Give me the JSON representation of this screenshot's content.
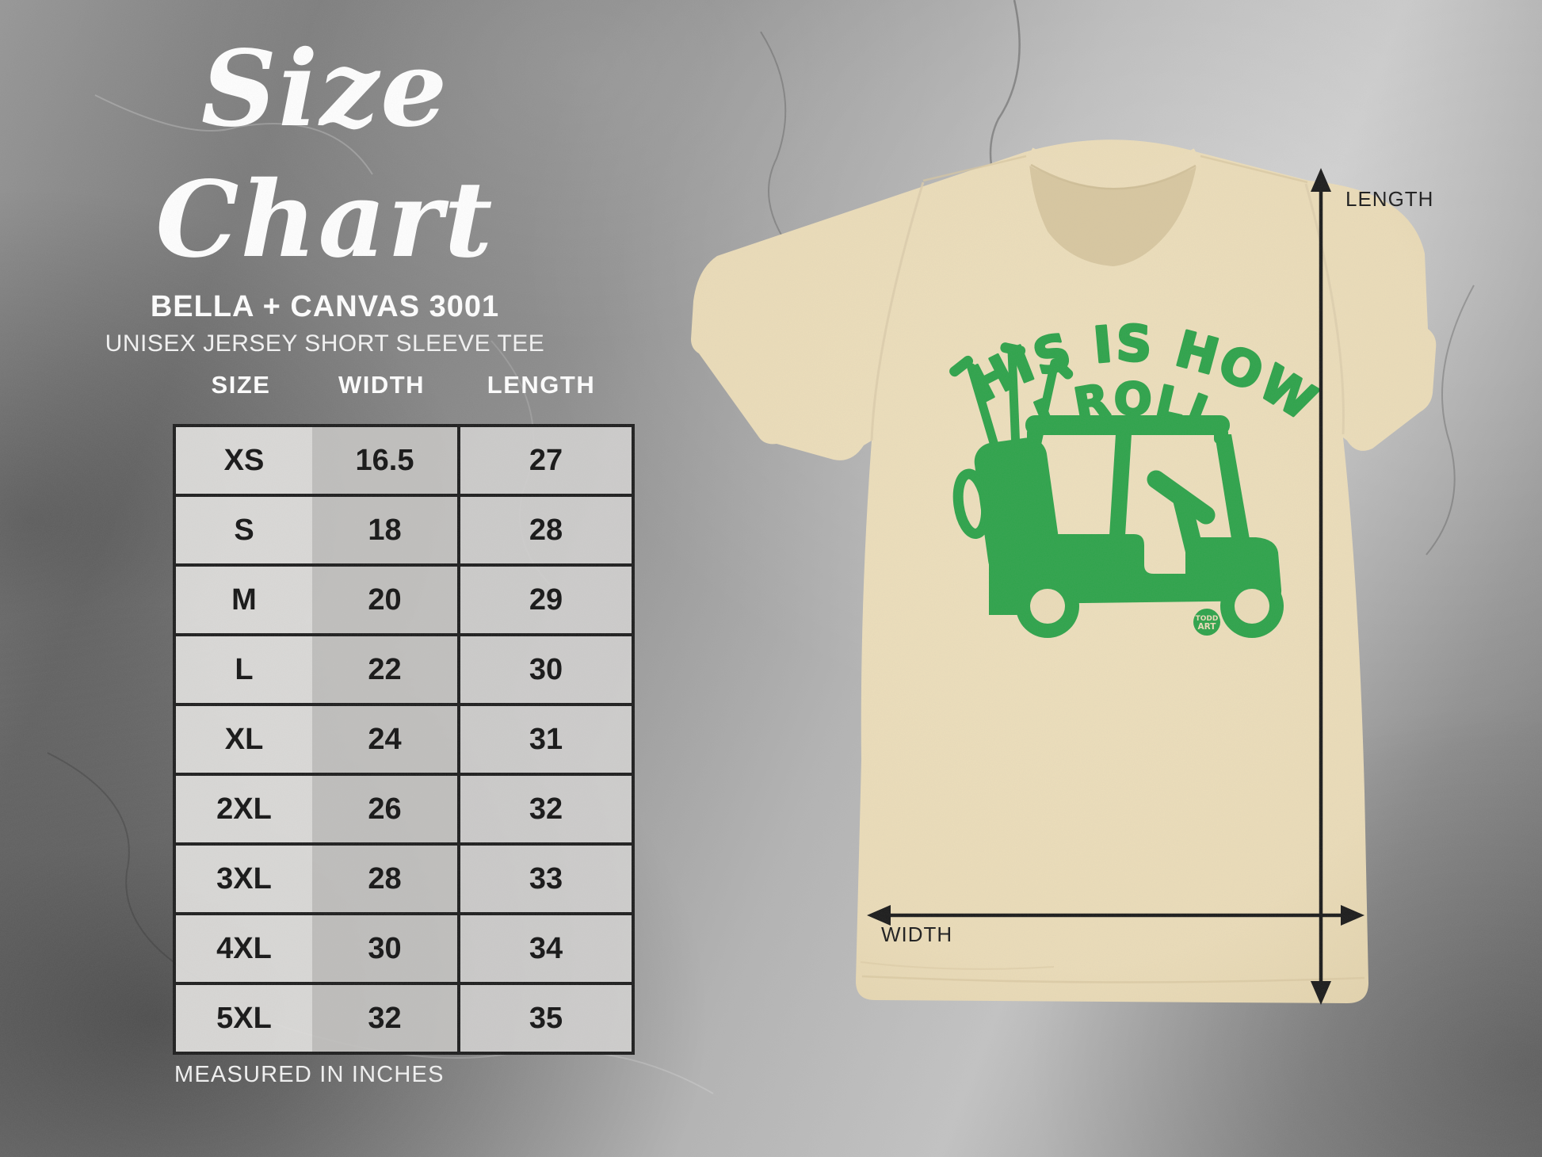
{
  "title": "Size Chart",
  "brand": "BELLA + CANVAS 3001",
  "product": "UNISEX JERSEY SHORT SLEEVE TEE",
  "table": {
    "columns": [
      "SIZE",
      "WIDTH",
      "LENGTH"
    ],
    "rows": [
      [
        "XS",
        "16.5",
        "27"
      ],
      [
        "S",
        "18",
        "28"
      ],
      [
        "M",
        "20",
        "29"
      ],
      [
        "L",
        "22",
        "30"
      ],
      [
        "XL",
        "24",
        "31"
      ],
      [
        "2XL",
        "26",
        "32"
      ],
      [
        "3XL",
        "28",
        "33"
      ],
      [
        "4XL",
        "30",
        "34"
      ],
      [
        "5XL",
        "32",
        "35"
      ]
    ]
  },
  "footnote": "MEASURED IN INCHES",
  "shirt": {
    "design_line1": "THIS IS HOW",
    "design_line2": "I ROLL",
    "logo_line1": "TODD",
    "logo_line2": "ART",
    "design_color": "#2da34a",
    "shirt_color": "#ebdcb8"
  },
  "annotations": {
    "length_label": "LENGTH",
    "width_label": "WIDTH",
    "arrow_color": "#1a1a1a"
  },
  "chart_data": {
    "type": "table",
    "title": "Size Chart",
    "subtitle": "BELLA + CANVAS 3001 — UNISEX JERSEY SHORT SLEEVE TEE",
    "units": "inches",
    "columns": [
      "SIZE",
      "WIDTH",
      "LENGTH"
    ],
    "rows": [
      [
        "XS",
        16.5,
        27
      ],
      [
        "S",
        18,
        28
      ],
      [
        "M",
        20,
        29
      ],
      [
        "L",
        22,
        30
      ],
      [
        "XL",
        24,
        31
      ],
      [
        "2XL",
        26,
        32
      ],
      [
        "3XL",
        28,
        33
      ],
      [
        "4XL",
        30,
        34
      ],
      [
        "5XL",
        32,
        35
      ]
    ],
    "note": "MEASURED IN INCHES"
  }
}
